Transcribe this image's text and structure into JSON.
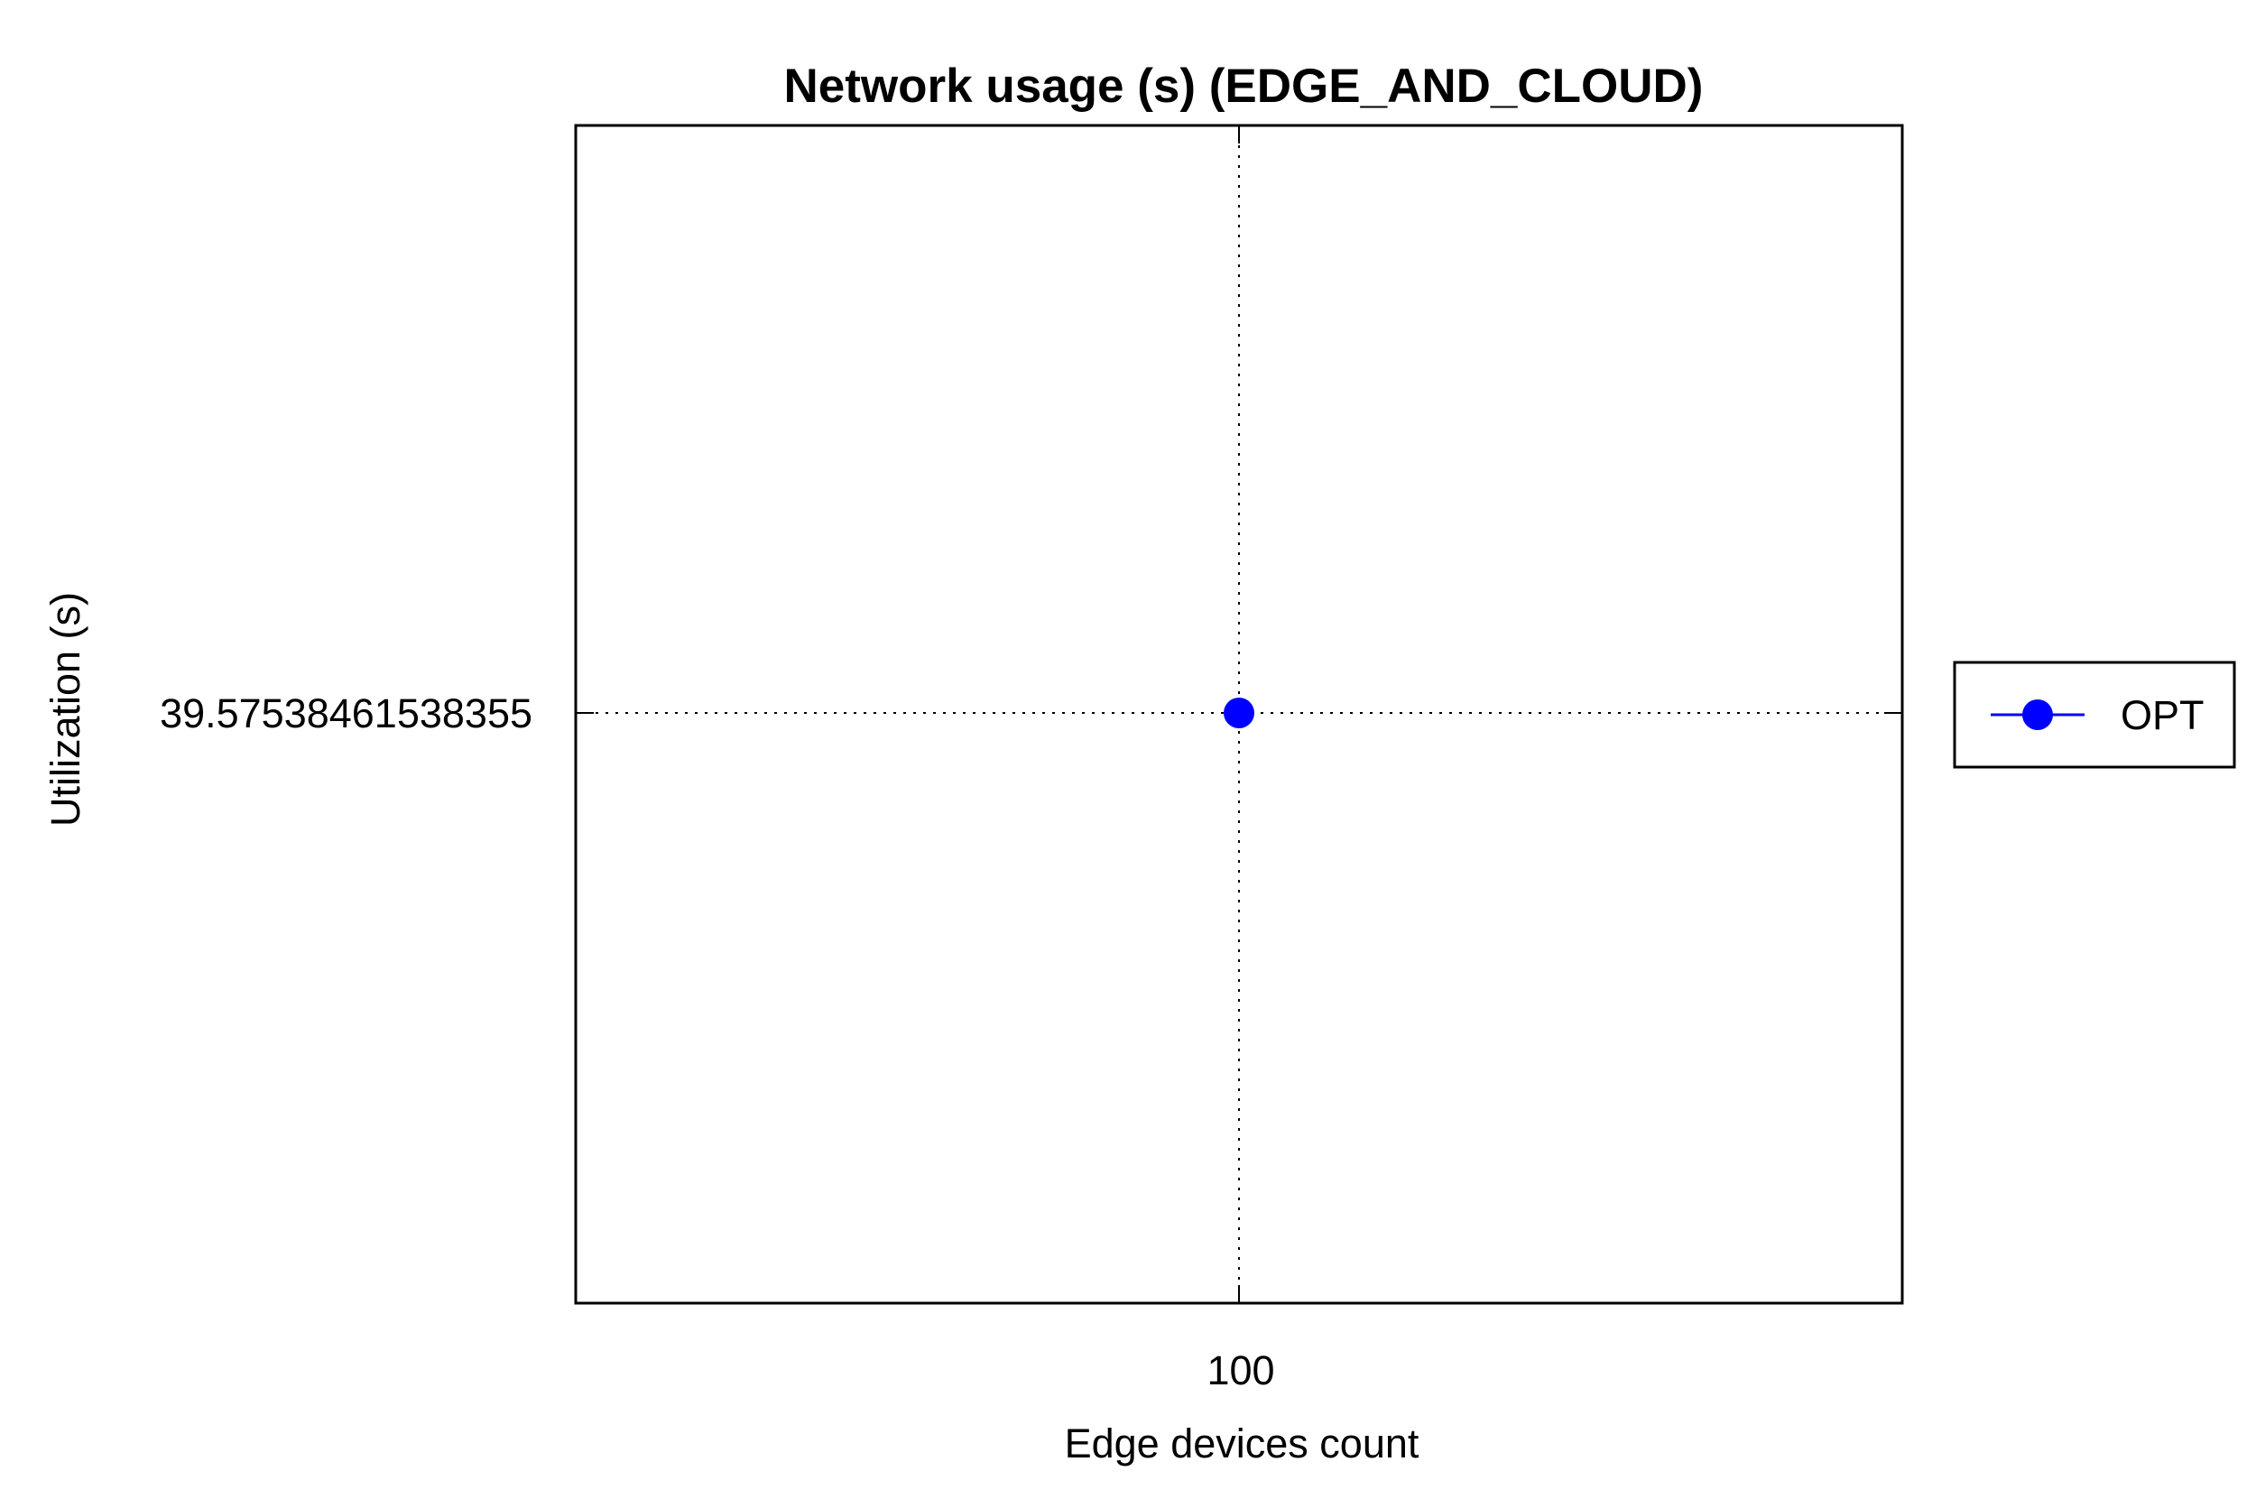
{
  "chart_data": {
    "type": "line",
    "title": "Network usage (s) (EDGE_AND_CLOUD)",
    "xlabel": "Edge devices count",
    "ylabel": "Utilization (s)",
    "categories": [
      "100"
    ],
    "x_tick_labels": [
      "100"
    ],
    "y_tick_labels": [
      "39.57538461538355"
    ],
    "series": [
      {
        "name": "OPT",
        "values": [
          39.57538461538355
        ],
        "color": "#0000ff",
        "marker": "circle"
      }
    ],
    "grid": true,
    "grid_style": "dotted",
    "legend": {
      "placement": "outside-right",
      "entries": [
        "OPT"
      ]
    }
  }
}
